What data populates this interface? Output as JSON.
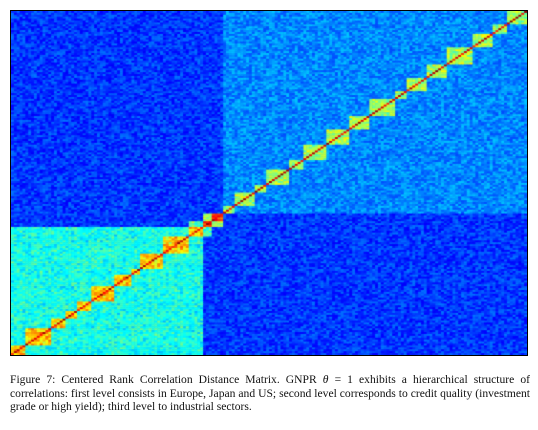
{
  "figure": {
    "caption_label": "Figure 7:",
    "caption_part1": "Centered Rank Correlation Distance Matrix. GNPR",
    "caption_symbol": "θ",
    "caption_part2": "= 1 exhibits a hierarchical structure of correlations: first level consists in Europe, Japan and US; second level corresponds to credit quality (investment grade or high yield); third level to industrial sectors."
  },
  "chart_data": {
    "type": "heatmap",
    "title": "",
    "colormap": "jet",
    "colors": {
      "low": "#00008f",
      "mid_low": "#0050ff",
      "mid": "#00d0ff",
      "mid_high": "#f0ff40",
      "high": "#ff2000"
    },
    "diagonal": "descending",
    "blocks": [
      {
        "name": "block-1",
        "fraction_start": 0.0,
        "fraction_end": 0.38,
        "level": 0.55
      },
      {
        "name": "block-2",
        "fraction_start": 0.38,
        "fraction_end": 0.41,
        "level": 0.85
      },
      {
        "name": "block-3",
        "fraction_start": 0.41,
        "fraction_end": 1.0,
        "level": 0.35
      }
    ],
    "highest_values": "diagonal"
  }
}
